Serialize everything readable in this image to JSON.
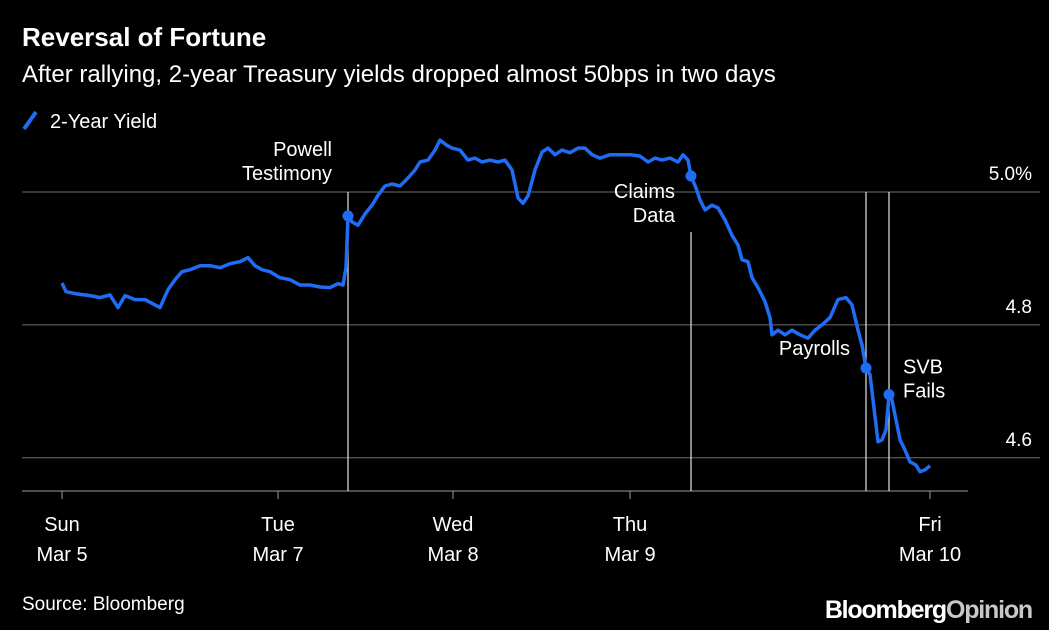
{
  "chart_data": {
    "type": "line",
    "title": "Reversal of Fortune",
    "subtitle": "After rallying, 2-year Treasury yields dropped almost 50bps in two days",
    "source": "Source: Bloomberg",
    "brand": [
      "Bloomberg",
      "Opinion"
    ],
    "xlim": [
      0,
      946
    ],
    "xticks": [
      {
        "value": 40,
        "label": [
          "Sun",
          "Mar 5"
        ]
      },
      {
        "value": 256,
        "label": [
          "Tue",
          "Mar 7"
        ]
      },
      {
        "value": 431,
        "label": [
          "Wed",
          "Mar 8"
        ]
      },
      {
        "value": 608,
        "label": [
          "Thu",
          "Mar 9"
        ]
      },
      {
        "value": 908,
        "label": [
          "Fri",
          "Mar 10"
        ]
      }
    ],
    "ylim": [
      4.55,
      5.1
    ],
    "yticks": [
      4.6,
      4.8,
      {
        "value": 5,
        "label": "5.0%"
      }
    ],
    "grid": true,
    "legend": "top-left",
    "series": [
      {
        "name": "2-Year Yield",
        "color": "#1f6cf5",
        "x": [
          40,
          44,
          53,
          68,
          78,
          88,
          96,
          103,
          113,
          123,
          133,
          138,
          146,
          153,
          160,
          168,
          178,
          188,
          198,
          208,
          218,
          226,
          233,
          240,
          248,
          258,
          268,
          278,
          288,
          298,
          308,
          316,
          321,
          324,
          326,
          330,
          336,
          343,
          350,
          356,
          363,
          370,
          378,
          386,
          393,
          398,
          406,
          413,
          418,
          424,
          430,
          438,
          446,
          453,
          460,
          468,
          476,
          483,
          490,
          496,
          501,
          506,
          513,
          520,
          526,
          533,
          540,
          548,
          556,
          563,
          570,
          578,
          588,
          598,
          608,
          618,
          626,
          633,
          640,
          648,
          656,
          661,
          666,
          669,
          674,
          678,
          683,
          690,
          696,
          703,
          710,
          716,
          720,
          726,
          730,
          736,
          743,
          748,
          750,
          756,
          763,
          770,
          778,
          786,
          793,
          800,
          808,
          816,
          824,
          830,
          836,
          840,
          844,
          848,
          852,
          856,
          860,
          864,
          867,
          870,
          874,
          878,
          882,
          888,
          894,
          898,
          903,
          908
        ],
        "values": [
          4.863,
          4.85,
          4.847,
          4.844,
          4.841,
          4.845,
          4.826,
          4.844,
          4.838,
          4.838,
          4.83,
          4.826,
          4.853,
          4.868,
          4.88,
          4.883,
          4.889,
          4.889,
          4.886,
          4.892,
          4.895,
          4.901,
          4.889,
          4.883,
          4.88,
          4.871,
          4.868,
          4.86,
          4.86,
          4.857,
          4.856,
          4.862,
          4.86,
          4.886,
          4.964,
          4.955,
          4.95,
          4.967,
          4.98,
          4.995,
          5.009,
          5.012,
          5.009,
          5.021,
          5.033,
          5.045,
          5.048,
          5.063,
          5.078,
          5.071,
          5.066,
          5.063,
          5.048,
          5.051,
          5.045,
          5.048,
          5.045,
          5.048,
          5.033,
          4.991,
          4.983,
          4.994,
          5.033,
          5.06,
          5.066,
          5.056,
          5.063,
          5.059,
          5.066,
          5.066,
          5.056,
          5.051,
          5.056,
          5.056,
          5.056,
          5.054,
          5.045,
          5.051,
          5.048,
          5.051,
          5.045,
          5.056,
          5.048,
          5.024,
          5.006,
          4.988,
          4.973,
          4.98,
          4.976,
          4.958,
          4.935,
          4.92,
          4.898,
          4.895,
          4.871,
          4.856,
          4.835,
          4.811,
          4.785,
          4.792,
          4.785,
          4.792,
          4.785,
          4.78,
          4.792,
          4.8,
          4.811,
          4.838,
          4.841,
          4.83,
          4.792,
          4.77,
          4.735,
          4.725,
          4.675,
          4.624,
          4.627,
          4.642,
          4.695,
          4.687,
          4.657,
          4.627,
          4.615,
          4.594,
          4.589,
          4.579,
          4.582,
          4.588
        ]
      }
    ],
    "annotations": [
      {
        "text": [
          "Powell",
          "Testimony"
        ],
        "x": 326,
        "y": 4.964
      },
      {
        "text": [
          "Claims",
          "Data"
        ],
        "x": 669,
        "y": 5.024
      },
      {
        "text": [
          "Payrolls"
        ],
        "x": 844,
        "y": 4.735
      },
      {
        "text": [
          "SVB",
          "Fails"
        ],
        "x": 867,
        "y": 4.695
      }
    ]
  }
}
